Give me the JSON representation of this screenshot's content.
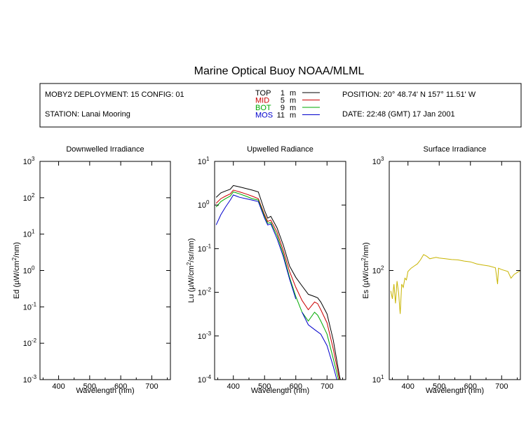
{
  "title": "Marine Optical Buoy NOAA/MLML",
  "header": {
    "deployment": "MOBY2 DEPLOYMENT: 15 CONFIG: 01",
    "station": "STATION: Lanai Mooring",
    "position": "POSITION: 20° 48.74' N   157° 11.51' W",
    "date": "DATE: 22:48 (GMT) 17 Jan 2001",
    "legend": [
      {
        "name": "TOP",
        "depth": "1",
        "unit": "m",
        "color": "#000000"
      },
      {
        "name": "MID",
        "depth": "5",
        "unit": "m",
        "color": "#cc0000"
      },
      {
        "name": "BOT",
        "depth": "9",
        "unit": "m",
        "color": "#00aa00"
      },
      {
        "name": "MOS",
        "depth": "11",
        "unit": "m",
        "color": "#0000cc"
      }
    ]
  },
  "chart_data": [
    {
      "type": "line",
      "title": "Downwelled Irradiance",
      "xlabel": "Wavelength (nm)",
      "ylabel_parts": [
        "Ed  (µW/cm",
        "2",
        "/nm)"
      ],
      "xlim": [
        340,
        760
      ],
      "ylim_log10": [
        -3,
        3
      ],
      "xticks": [
        400,
        500,
        600,
        700
      ],
      "yticks": [
        {
          "exp": -3,
          "base": "10",
          "sup": "-3"
        },
        {
          "exp": -2,
          "base": "10",
          "sup": "-2"
        },
        {
          "exp": -1,
          "base": "10",
          "sup": "-1"
        },
        {
          "exp": 0,
          "base": "10",
          "sup": "0"
        },
        {
          "exp": 1,
          "base": "10",
          "sup": "1"
        },
        {
          "exp": 2,
          "base": "10",
          "sup": "2"
        },
        {
          "exp": 3,
          "base": "10",
          "sup": "3"
        }
      ],
      "series": []
    },
    {
      "type": "line",
      "title": "Upwelled Radiance",
      "xlabel": "Wavelength (nm)",
      "ylabel_parts": [
        "Lu  (µW/cm",
        "2",
        "/sr/nm)"
      ],
      "xlim": [
        340,
        760
      ],
      "ylim_log10": [
        -4,
        1
      ],
      "xticks": [
        400,
        500,
        600,
        700
      ],
      "yticks": [
        {
          "exp": -4,
          "base": "10",
          "sup": "-4"
        },
        {
          "exp": -3,
          "base": "10",
          "sup": "-3"
        },
        {
          "exp": -2,
          "base": "10",
          "sup": "-2"
        },
        {
          "exp": -1,
          "base": "10",
          "sup": "-1"
        },
        {
          "exp": 0,
          "base": "10",
          "sup": "0"
        },
        {
          "exp": 1,
          "base": "10",
          "sup": "1"
        }
      ],
      "series": [
        {
          "name": "TOP",
          "color": "#000000",
          "x": [
            345,
            360,
            375,
            390,
            400,
            410,
            420,
            440,
            460,
            480,
            500,
            510,
            520,
            540,
            560,
            580,
            600,
            620,
            640,
            660,
            670,
            680,
            700,
            720,
            740,
            750
          ],
          "y": [
            1.5,
            1.9,
            2.1,
            2.3,
            2.8,
            2.7,
            2.6,
            2.4,
            2.2,
            2.0,
            0.75,
            0.5,
            0.55,
            0.3,
            0.12,
            0.04,
            0.022,
            0.014,
            0.009,
            0.008,
            0.0075,
            0.006,
            0.0032,
            0.0008,
            0.00012,
            6e-05
          ]
        },
        {
          "name": "MID",
          "color": "#cc0000",
          "x": [
            345,
            360,
            375,
            390,
            400,
            410,
            420,
            440,
            460,
            480,
            500,
            510,
            520,
            540,
            560,
            580,
            600,
            620,
            640,
            660,
            670,
            680,
            700,
            720,
            740,
            750
          ],
          "y": [
            1.1,
            1.4,
            1.6,
            1.8,
            2.2,
            2.1,
            2.0,
            1.8,
            1.6,
            1.4,
            0.6,
            0.42,
            0.45,
            0.24,
            0.09,
            0.03,
            0.013,
            0.0065,
            0.004,
            0.006,
            0.0055,
            0.004,
            0.002,
            0.0005,
            0.0001,
            5e-05
          ]
        },
        {
          "name": "BOT",
          "color": "#00aa00",
          "x": [
            345,
            360,
            375,
            390,
            400,
            410,
            420,
            440,
            460,
            480,
            500,
            510,
            520,
            540,
            560,
            580,
            600,
            620,
            640,
            660,
            670,
            680,
            700,
            720,
            740,
            750
          ],
          "y": [
            0.9,
            1.2,
            1.4,
            1.6,
            2.0,
            1.9,
            1.8,
            1.6,
            1.4,
            1.3,
            0.55,
            0.38,
            0.4,
            0.2,
            0.075,
            0.022,
            0.008,
            0.0035,
            0.0022,
            0.0035,
            0.003,
            0.0022,
            0.0011,
            0.0003,
            8e-05,
            4e-05
          ]
        },
        {
          "name": "MOS",
          "color": "#0000cc",
          "x": [
            345,
            360,
            375,
            390,
            400,
            410,
            420,
            440,
            460,
            480,
            500,
            510,
            520,
            540,
            560,
            580,
            600,
            610,
            620,
            640,
            660,
            680,
            700,
            720,
            740,
            750
          ],
          "y": [
            0.35,
            0.6,
            0.9,
            1.3,
            1.7,
            1.6,
            1.5,
            1.4,
            1.3,
            1.2,
            0.5,
            0.35,
            0.37,
            0.17,
            0.065,
            0.02,
            0.007,
            null,
            0.0035,
            0.0018,
            0.0014,
            0.0011,
            0.0006,
            0.0002,
            6e-05,
            3e-05
          ]
        }
      ]
    },
    {
      "type": "line",
      "title": "Surface Irradiance",
      "xlabel": "Wavelength (nm)",
      "ylabel_parts": [
        "Es  (µW/cm",
        "2",
        "/nm)"
      ],
      "xlim": [
        340,
        760
      ],
      "ylim_log10": [
        1,
        3
      ],
      "xticks": [
        400,
        500,
        600,
        700
      ],
      "yticks": [
        {
          "exp": 1,
          "base": "10",
          "sup": "1"
        },
        {
          "exp": 2,
          "base": "10",
          "sup": "2"
        },
        {
          "exp": 3,
          "base": "10",
          "sup": "3"
        }
      ],
      "series": [
        {
          "name": "Es",
          "color": "#c8b400",
          "x": [
            345,
            350,
            355,
            360,
            365,
            370,
            375,
            380,
            385,
            390,
            395,
            400,
            410,
            420,
            430,
            440,
            450,
            460,
            470,
            480,
            490,
            500,
            520,
            540,
            560,
            580,
            600,
            620,
            640,
            660,
            680,
            687,
            690,
            700,
            720,
            730,
            740,
            750,
            760
          ],
          "y": [
            65,
            55,
            75,
            50,
            80,
            62,
            40,
            75,
            70,
            85,
            82,
            98,
            105,
            110,
            115,
            125,
            140,
            135,
            128,
            130,
            132,
            130,
            128,
            126,
            125,
            122,
            120,
            115,
            112,
            110,
            106,
            75,
            105,
            102,
            98,
            85,
            92,
            96,
            100
          ]
        }
      ]
    }
  ]
}
